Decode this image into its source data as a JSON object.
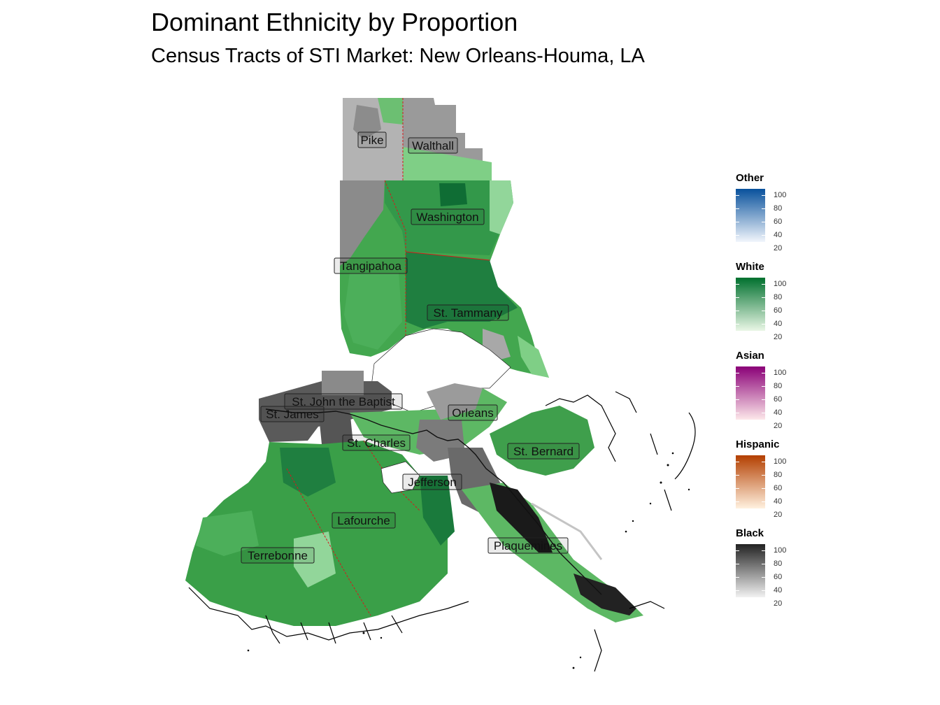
{
  "title": "Dominant Ethnicity by Proportion",
  "subtitle": "Census Tracts of STI Market: New Orleans-Houma, LA",
  "parishes": [
    {
      "name": "Pike"
    },
    {
      "name": "Walthall"
    },
    {
      "name": "Washington"
    },
    {
      "name": "Tangipahoa"
    },
    {
      "name": "St. Tammany"
    },
    {
      "name": "St. John the Baptist"
    },
    {
      "name": "St. James"
    },
    {
      "name": "Orleans"
    },
    {
      "name": "St. Charles"
    },
    {
      "name": "St. Bernard"
    },
    {
      "name": "Jefferson"
    },
    {
      "name": "Lafourche"
    },
    {
      "name": "Plaquemines"
    },
    {
      "name": "Terrebonne"
    }
  ],
  "legends": [
    {
      "title": "Other",
      "low": "#f2f6fc",
      "high": "#08519c",
      "ticks": [
        "100",
        "80",
        "60",
        "40",
        "20"
      ]
    },
    {
      "title": "White",
      "low": "#eaf7e6",
      "high": "#00702e",
      "ticks": [
        "100",
        "80",
        "60",
        "40",
        "20"
      ]
    },
    {
      "title": "Asian",
      "low": "#fde8ea",
      "high": "#8a0077",
      "ticks": [
        "100",
        "80",
        "60",
        "40",
        "20"
      ]
    },
    {
      "title": "Hispanic",
      "low": "#fff1df",
      "high": "#b33f00",
      "ticks": [
        "100",
        "80",
        "60",
        "40",
        "20"
      ]
    },
    {
      "title": "Black",
      "low": "#f2f2f2",
      "high": "#222222",
      "ticks": [
        "100",
        "80",
        "60",
        "40",
        "20"
      ]
    }
  ],
  "colors": {
    "county_border": "#d7191c",
    "water": "#ffffff",
    "coast": "#000000"
  }
}
